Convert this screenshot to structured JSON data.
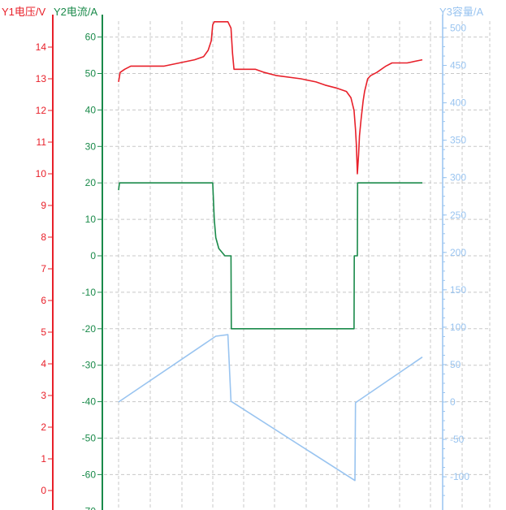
{
  "chart_data": {
    "type": "line",
    "axes": {
      "y1": {
        "label": "Y1电压/V",
        "color": "#e8202a",
        "range": [
          -0.5,
          15.3
        ],
        "ticks": [
          0,
          1,
          2,
          3,
          4,
          5,
          6,
          7,
          8,
          9,
          10,
          11,
          12,
          13,
          14
        ]
      },
      "y2": {
        "label": "Y2电流/A",
        "color": "#1a8a4a",
        "range": [
          -70,
          65
        ],
        "ticks": [
          60,
          50,
          40,
          30,
          20,
          10,
          0,
          -10,
          -20,
          -30,
          -40,
          -50,
          -60,
          -70
        ]
      },
      "y3": {
        "label": "Y3容量/A",
        "color": "#99c4f0",
        "range": [
          -130,
          510
        ],
        "ticks": [
          500,
          450,
          400,
          350,
          300,
          250,
          200,
          150,
          100,
          50,
          0,
          -50,
          -100
        ]
      }
    },
    "x_range": [
      0,
      100
    ],
    "grid": true,
    "series": [
      {
        "axis": "y1",
        "color": "#e8202a",
        "points": [
          [
            0,
            12.9
          ],
          [
            0.5,
            13.2
          ],
          [
            2,
            13.3
          ],
          [
            4,
            13.4
          ],
          [
            8,
            13.4
          ],
          [
            15,
            13.4
          ],
          [
            20,
            13.5
          ],
          [
            25,
            13.6
          ],
          [
            28,
            13.7
          ],
          [
            29.5,
            13.9
          ],
          [
            30.5,
            14.2
          ],
          [
            31,
            14.7
          ],
          [
            31.5,
            14.8
          ],
          [
            36,
            14.8
          ],
          [
            37,
            14.6
          ],
          [
            37.5,
            13.8
          ],
          [
            38,
            13.3
          ],
          [
            45,
            13.3
          ],
          [
            48,
            13.2
          ],
          [
            52,
            13.1
          ],
          [
            60,
            13.0
          ],
          [
            65,
            12.9
          ],
          [
            68,
            12.8
          ],
          [
            72,
            12.7
          ],
          [
            75,
            12.6
          ],
          [
            76.5,
            12.4
          ],
          [
            77.5,
            12.0
          ],
          [
            78,
            11.4
          ],
          [
            78.3,
            10.9
          ],
          [
            78.6,
            10.0
          ],
          [
            79,
            10.6
          ],
          [
            79.3,
            11.2
          ],
          [
            79.8,
            11.7
          ],
          [
            80.5,
            12.3
          ],
          [
            81,
            12.6
          ],
          [
            82,
            13.0
          ],
          [
            83,
            13.1
          ],
          [
            85,
            13.2
          ],
          [
            88,
            13.4
          ],
          [
            90,
            13.5
          ],
          [
            95,
            13.5
          ],
          [
            100,
            13.6
          ]
        ]
      },
      {
        "axis": "y2",
        "color": "#1a8a4a",
        "points": [
          [
            0,
            18
          ],
          [
            0.3,
            20
          ],
          [
            31,
            20
          ],
          [
            31.5,
            10
          ],
          [
            32,
            5
          ],
          [
            33,
            2
          ],
          [
            35,
            0
          ],
          [
            36,
            0
          ],
          [
            37,
            0
          ],
          [
            37.1,
            -20
          ],
          [
            77.5,
            -20
          ],
          [
            77.6,
            0
          ],
          [
            78.6,
            0
          ],
          [
            78.7,
            20
          ],
          [
            100,
            20
          ]
        ]
      },
      {
        "axis": "y3",
        "color": "#99c4f0",
        "points": [
          [
            0,
            0
          ],
          [
            32,
            88
          ],
          [
            36,
            90
          ],
          [
            37,
            1
          ],
          [
            77.8,
            -105
          ],
          [
            78,
            -1
          ],
          [
            100,
            60
          ]
        ]
      }
    ]
  },
  "labels": {
    "y1_title": "Y1电压/V",
    "y2_title": "Y2电流/A",
    "y3_title": "Y3容量/A"
  }
}
